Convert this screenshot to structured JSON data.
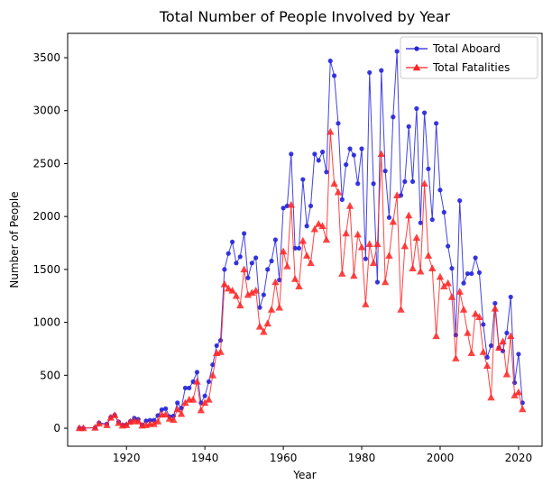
{
  "chart_data": {
    "type": "line",
    "title": "Total Number of People Involved by Year",
    "xlabel": "Year",
    "ylabel": "Number of People",
    "xlim": [
      1905,
      2026
    ],
    "ylim": [
      -170,
      3730
    ],
    "xticks": [
      1920,
      1940,
      1960,
      1980,
      2000,
      2020
    ],
    "yticks": [
      0,
      500,
      1000,
      1500,
      2000,
      2500,
      3000,
      3500
    ],
    "grid": false,
    "legend_position": "top-right",
    "series": [
      {
        "name": "Total Aboard",
        "color": "#2222dd",
        "marker": "circle",
        "points": [
          [
            1908,
            2
          ],
          [
            1909,
            1
          ],
          [
            1912,
            5
          ],
          [
            1913,
            51
          ],
          [
            1915,
            40
          ],
          [
            1916,
            105
          ],
          [
            1917,
            124
          ],
          [
            1918,
            60
          ],
          [
            1919,
            30
          ],
          [
            1920,
            35
          ],
          [
            1921,
            65
          ],
          [
            1922,
            95
          ],
          [
            1923,
            85
          ],
          [
            1924,
            30
          ],
          [
            1925,
            70
          ],
          [
            1926,
            75
          ],
          [
            1927,
            75
          ],
          [
            1928,
            120
          ],
          [
            1929,
            175
          ],
          [
            1930,
            185
          ],
          [
            1931,
            110
          ],
          [
            1932,
            115
          ],
          [
            1933,
            240
          ],
          [
            1934,
            190
          ],
          [
            1935,
            380
          ],
          [
            1936,
            380
          ],
          [
            1937,
            440
          ],
          [
            1938,
            530
          ],
          [
            1939,
            240
          ],
          [
            1940,
            305
          ],
          [
            1941,
            440
          ],
          [
            1942,
            600
          ],
          [
            1943,
            780
          ],
          [
            1944,
            830
          ],
          [
            1945,
            1500
          ],
          [
            1946,
            1650
          ],
          [
            1947,
            1760
          ],
          [
            1948,
            1560
          ],
          [
            1949,
            1620
          ],
          [
            1950,
            1840
          ],
          [
            1951,
            1420
          ],
          [
            1952,
            1560
          ],
          [
            1953,
            1610
          ],
          [
            1954,
            1140
          ],
          [
            1955,
            1260
          ],
          [
            1956,
            1500
          ],
          [
            1957,
            1580
          ],
          [
            1958,
            1780
          ],
          [
            1959,
            1400
          ],
          [
            1960,
            2080
          ],
          [
            1961,
            2100
          ],
          [
            1962,
            2590
          ],
          [
            1963,
            1700
          ],
          [
            1964,
            1700
          ],
          [
            1965,
            2350
          ],
          [
            1966,
            1910
          ],
          [
            1967,
            2100
          ],
          [
            1968,
            2590
          ],
          [
            1969,
            2530
          ],
          [
            1970,
            2610
          ],
          [
            1971,
            2420
          ],
          [
            1972,
            3470
          ],
          [
            1973,
            3330
          ],
          [
            1974,
            2880
          ],
          [
            1975,
            2160
          ],
          [
            1976,
            2490
          ],
          [
            1977,
            2640
          ],
          [
            1978,
            2580
          ],
          [
            1979,
            2310
          ],
          [
            1980,
            2640
          ],
          [
            1981,
            1600
          ],
          [
            1982,
            3360
          ],
          [
            1983,
            2310
          ],
          [
            1984,
            1380
          ],
          [
            1985,
            3380
          ],
          [
            1986,
            2430
          ],
          [
            1987,
            1990
          ],
          [
            1988,
            2940
          ],
          [
            1989,
            3560
          ],
          [
            1990,
            2200
          ],
          [
            1991,
            2330
          ],
          [
            1992,
            2850
          ],
          [
            1993,
            2330
          ],
          [
            1994,
            3020
          ],
          [
            1995,
            1940
          ],
          [
            1996,
            2980
          ],
          [
            1997,
            2450
          ],
          [
            1998,
            1970
          ],
          [
            1999,
            2880
          ],
          [
            2000,
            2250
          ],
          [
            2001,
            2040
          ],
          [
            2002,
            1720
          ],
          [
            2003,
            1510
          ],
          [
            2004,
            880
          ],
          [
            2005,
            2150
          ],
          [
            2006,
            1370
          ],
          [
            2007,
            1460
          ],
          [
            2008,
            1460
          ],
          [
            2009,
            1610
          ],
          [
            2010,
            1470
          ],
          [
            2011,
            980
          ],
          [
            2012,
            670
          ],
          [
            2013,
            780
          ],
          [
            2014,
            1180
          ],
          [
            2015,
            760
          ],
          [
            2016,
            730
          ],
          [
            2017,
            900
          ],
          [
            2018,
            1240
          ],
          [
            2019,
            430
          ],
          [
            2020,
            700
          ],
          [
            2021,
            240
          ]
        ]
      },
      {
        "name": "Total Fatalities",
        "color": "#ff2222",
        "marker": "triangle",
        "points": [
          [
            1908,
            1
          ],
          [
            1909,
            1
          ],
          [
            1912,
            5
          ],
          [
            1913,
            44
          ],
          [
            1915,
            30
          ],
          [
            1916,
            100
          ],
          [
            1917,
            124
          ],
          [
            1918,
            50
          ],
          [
            1919,
            25
          ],
          [
            1920,
            30
          ],
          [
            1921,
            60
          ],
          [
            1922,
            70
          ],
          [
            1923,
            65
          ],
          [
            1924,
            25
          ],
          [
            1925,
            30
          ],
          [
            1926,
            40
          ],
          [
            1927,
            40
          ],
          [
            1928,
            65
          ],
          [
            1929,
            130
          ],
          [
            1930,
            130
          ],
          [
            1931,
            90
          ],
          [
            1932,
            80
          ],
          [
            1933,
            180
          ],
          [
            1934,
            135
          ],
          [
            1935,
            240
          ],
          [
            1936,
            270
          ],
          [
            1937,
            270
          ],
          [
            1938,
            440
          ],
          [
            1939,
            170
          ],
          [
            1940,
            240
          ],
          [
            1941,
            270
          ],
          [
            1942,
            500
          ],
          [
            1943,
            710
          ],
          [
            1944,
            720
          ],
          [
            1945,
            1360
          ],
          [
            1946,
            1320
          ],
          [
            1947,
            1300
          ],
          [
            1948,
            1250
          ],
          [
            1949,
            1160
          ],
          [
            1950,
            1500
          ],
          [
            1951,
            1260
          ],
          [
            1952,
            1280
          ],
          [
            1953,
            1300
          ],
          [
            1954,
            960
          ],
          [
            1955,
            910
          ],
          [
            1956,
            990
          ],
          [
            1957,
            1120
          ],
          [
            1958,
            1380
          ],
          [
            1959,
            1140
          ],
          [
            1960,
            1670
          ],
          [
            1961,
            1530
          ],
          [
            1962,
            2110
          ],
          [
            1963,
            1410
          ],
          [
            1964,
            1340
          ],
          [
            1965,
            1770
          ],
          [
            1966,
            1630
          ],
          [
            1967,
            1560
          ],
          [
            1968,
            1880
          ],
          [
            1969,
            1930
          ],
          [
            1970,
            1910
          ],
          [
            1971,
            1780
          ],
          [
            1972,
            2800
          ],
          [
            1973,
            2310
          ],
          [
            1974,
            2230
          ],
          [
            1975,
            1460
          ],
          [
            1976,
            1840
          ],
          [
            1977,
            2100
          ],
          [
            1978,
            1440
          ],
          [
            1979,
            1830
          ],
          [
            1980,
            1710
          ],
          [
            1981,
            1170
          ],
          [
            1982,
            1740
          ],
          [
            1983,
            1560
          ],
          [
            1984,
            1740
          ],
          [
            1985,
            2590
          ],
          [
            1986,
            1380
          ],
          [
            1987,
            1630
          ],
          [
            1988,
            1950
          ],
          [
            1989,
            2200
          ],
          [
            1990,
            1120
          ],
          [
            1991,
            1720
          ],
          [
            1992,
            2010
          ],
          [
            1993,
            1510
          ],
          [
            1994,
            1800
          ],
          [
            1995,
            1480
          ],
          [
            1996,
            2310
          ],
          [
            1997,
            1630
          ],
          [
            1998,
            1510
          ],
          [
            1999,
            870
          ],
          [
            2000,
            1430
          ],
          [
            2001,
            1340
          ],
          [
            2002,
            1370
          ],
          [
            2003,
            1240
          ],
          [
            2004,
            660
          ],
          [
            2005,
            1290
          ],
          [
            2006,
            1120
          ],
          [
            2007,
            900
          ],
          [
            2008,
            710
          ],
          [
            2009,
            1080
          ],
          [
            2010,
            1050
          ],
          [
            2011,
            720
          ],
          [
            2012,
            590
          ],
          [
            2013,
            290
          ],
          [
            2014,
            1130
          ],
          [
            2015,
            760
          ],
          [
            2016,
            820
          ],
          [
            2017,
            510
          ],
          [
            2018,
            870
          ],
          [
            2019,
            310
          ],
          [
            2020,
            340
          ],
          [
            2021,
            180
          ]
        ]
      }
    ]
  }
}
